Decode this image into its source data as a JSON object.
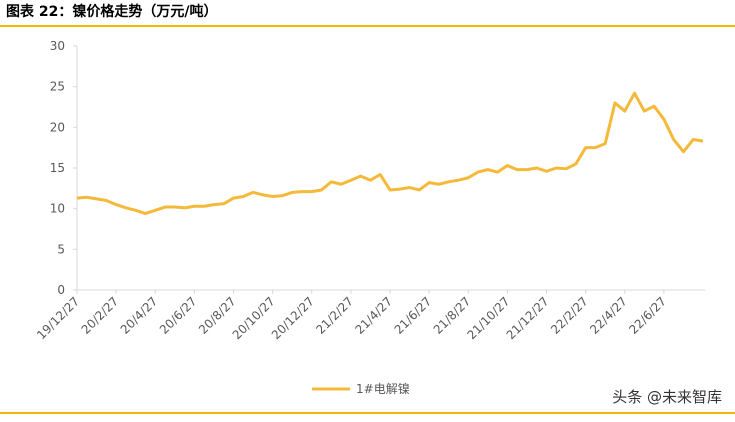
{
  "header": {
    "title": "图表 22：镍价格走势（万元/吨）"
  },
  "chart_data": {
    "type": "line",
    "categories": [
      "19/12/27",
      null,
      null,
      null,
      "20/2/27",
      null,
      null,
      null,
      "20/4/27",
      null,
      null,
      null,
      "20/6/27",
      null,
      null,
      null,
      "20/8/27",
      null,
      null,
      null,
      "20/10/27",
      null,
      null,
      null,
      "20/12/27",
      null,
      null,
      null,
      "21/2/27",
      null,
      null,
      null,
      "21/4/27",
      null,
      null,
      null,
      "21/6/27",
      null,
      null,
      null,
      "21/8/27",
      null,
      null,
      null,
      "21/10/27",
      null,
      null,
      null,
      "21/12/27",
      null,
      null,
      null,
      "22/2/27",
      null,
      null,
      null,
      "22/4/27",
      null,
      null,
      null,
      "22/6/27",
      null,
      null,
      null,
      null
    ],
    "series": [
      {
        "name": "1#电解镍",
        "color": "#f5b93a",
        "values": [
          11.3,
          11.4,
          11.2,
          11.0,
          10.5,
          10.1,
          9.8,
          9.4,
          9.8,
          10.2,
          10.2,
          10.1,
          10.3,
          10.3,
          10.5,
          10.6,
          11.3,
          11.5,
          12.0,
          11.7,
          11.5,
          11.6,
          12.0,
          12.1,
          12.1,
          12.3,
          13.3,
          13.0,
          13.5,
          14.0,
          13.5,
          14.2,
          12.3,
          12.4,
          12.6,
          12.3,
          13.2,
          13.0,
          13.3,
          13.5,
          13.8,
          14.5,
          14.8,
          14.5,
          15.3,
          14.8,
          14.8,
          15.0,
          14.6,
          15.0,
          14.9,
          15.5,
          17.5,
          17.5,
          18.0,
          23.0,
          22.0,
          24.2,
          22.0,
          22.6,
          21.0,
          18.5,
          17.0,
          18.5,
          18.3
        ]
      }
    ],
    "ylim": [
      0,
      30
    ],
    "yticks": [
      0,
      5,
      10,
      15,
      20,
      25,
      30
    ],
    "legend": "bottom"
  },
  "watermark": "头条 @未来智库"
}
